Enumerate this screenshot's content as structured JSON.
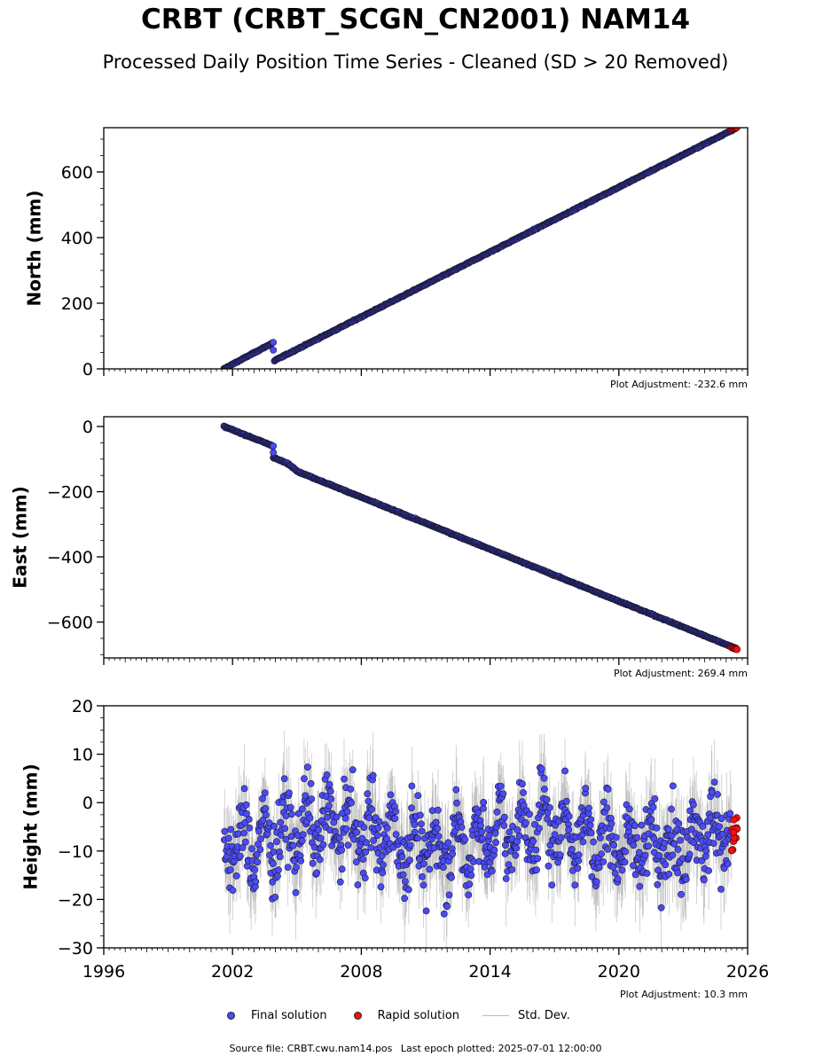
{
  "title": "CRBT (CRBT_SCGN_CN2001) NAM14",
  "subtitle": "Processed Daily Position Time Series - Cleaned (SD > 20 Removed)",
  "footer": {
    "source": "Source file: CRBT.cwu.nam14.pos",
    "last_epoch": "Last epoch plotted: 2025-07-01 12:00:00"
  },
  "legend": {
    "final": "Final solution",
    "rapid": "Rapid solution",
    "std": "Std. Dev."
  },
  "colors": {
    "final": "#4b4bf5",
    "rapid": "#ee1111",
    "std": "#888888",
    "edge": "#1a1a3a"
  },
  "chart_data": [
    {
      "type": "scatter",
      "ylabel": "North (mm)",
      "adjustment": "Plot Adjustment: -232.6 mm",
      "xlim": [
        1996,
        2026
      ],
      "ylim": [
        0,
        735
      ],
      "yticks": [
        0,
        200,
        400,
        600
      ],
      "ytick_labels": [
        "0",
        "200",
        "400",
        "600"
      ],
      "segments": [
        {
          "x": [
            2001.6,
            2003.9
          ],
          "y": [
            0,
            80
          ]
        },
        {
          "x": [
            2003.95,
            2025.5
          ],
          "y": [
            25,
            735
          ]
        }
      ],
      "outliers": [
        {
          "x": 2003.9,
          "y": 57
        }
      ],
      "rapid": {
        "x": [
          2025.25,
          2025.5
        ],
        "y": [
          730,
          736
        ]
      }
    },
    {
      "type": "scatter",
      "ylabel": "East (mm)",
      "adjustment": "Plot Adjustment: 269.4 mm",
      "xlim": [
        1996,
        2026
      ],
      "ylim": [
        -710,
        30
      ],
      "yticks": [
        0,
        -200,
        -400,
        -600
      ],
      "ytick_labels": [
        "0",
        "−200",
        "−400",
        "−600"
      ],
      "segments": [
        {
          "x": [
            2001.6,
            2003.9
          ],
          "y": [
            0,
            -60
          ]
        },
        {
          "x": [
            2003.9,
            2004.6
          ],
          "y": [
            -95,
            -115
          ]
        },
        {
          "x": [
            2004.6,
            2005.1
          ],
          "y": [
            -115,
            -140
          ]
        },
        {
          "x": [
            2005.1,
            2025.5
          ],
          "y": [
            -140,
            -682
          ]
        }
      ],
      "outliers": [
        {
          "x": 2003.9,
          "y": -80
        }
      ],
      "rapid": {
        "x": [
          2025.25,
          2025.5
        ],
        "y": [
          -678,
          -684
        ]
      }
    },
    {
      "type": "scatter",
      "ylabel": "Height (mm)",
      "adjustment": "Plot Adjustment: 10.3 mm",
      "xlim": [
        1996,
        2026
      ],
      "ylim": [
        -30,
        20
      ],
      "yticks": [
        20,
        10,
        0,
        -10,
        -20,
        -30
      ],
      "ytick_labels": [
        "20",
        "10",
        "0",
        "−10",
        "−20",
        "−30"
      ],
      "xticks": [
        1996,
        2002,
        2008,
        2014,
        2020,
        2026
      ],
      "xtick_labels": [
        "1996",
        "2002",
        "2008",
        "2014",
        "2020",
        "2026"
      ],
      "start": 2001.6,
      "end": 2025.5,
      "mean": -7,
      "spread": 7,
      "annual_amplitude": 5,
      "rapid": {
        "x": [
          2025.25,
          2025.5
        ],
        "y_range": [
          -11,
          -3
        ]
      }
    }
  ]
}
